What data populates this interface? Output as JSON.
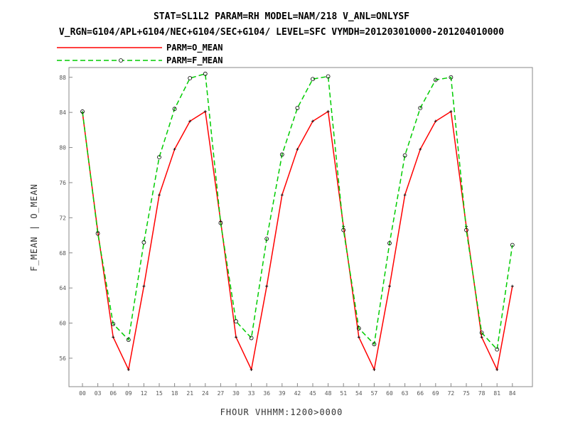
{
  "title_line1": "STAT=SL1L2 PARAM=RH MODEL=NAM/218 V_ANL=ONLYSF",
  "title_line2": "V_RGN=G104/APL+G104/NEC+G104/SEC+G104/ LEVEL=SFC VYMDH=201203010000-201204010000",
  "chart_data": {
    "type": "line",
    "title": "STAT=SL1L2 PARAM=RH MODEL=NAM/218 V_ANL=ONLYSF",
    "xlabel": "FHOUR VHHMM:1200>0000",
    "ylabel": "F_MEAN | O_MEAN",
    "x": [
      "00",
      "03",
      "06",
      "09",
      "12",
      "15",
      "18",
      "21",
      "24",
      "27",
      "30",
      "33",
      "36",
      "39",
      "42",
      "45",
      "48",
      "51",
      "54",
      "57",
      "60",
      "63",
      "66",
      "69",
      "72",
      "75",
      "78",
      "81",
      "84"
    ],
    "ylim": [
      53,
      90
    ],
    "yticks": [
      56,
      60,
      64,
      68,
      72,
      76,
      80,
      84,
      88
    ],
    "ytick_labels": [
      "56",
      "60",
      "64",
      "68",
      "72",
      "76",
      "80",
      "84",
      "88"
    ],
    "grid": false,
    "legend_position": "top-left",
    "series": [
      {
        "name": "PARM=O_MEAN",
        "color": "#ff0000",
        "dash": "solid",
        "marker": "plus",
        "values": [
          84.0,
          70.4,
          58.4,
          54.7,
          64.2,
          74.6,
          79.8,
          83.0,
          84.1,
          71.6,
          58.4,
          54.7,
          64.2,
          74.6,
          79.8,
          83.0,
          84.1,
          71.0,
          58.4,
          54.7,
          64.2,
          74.6,
          79.8,
          83.0,
          84.1,
          71.0,
          58.4,
          54.7,
          64.2
        ]
      },
      {
        "name": "PARM=F_MEAN",
        "color": "#00cc00",
        "dash": "dashed",
        "marker": "circle",
        "values": [
          84.1,
          70.2,
          59.9,
          58.1,
          69.2,
          78.9,
          84.4,
          87.9,
          88.4,
          71.4,
          60.2,
          58.3,
          69.6,
          79.2,
          84.5,
          87.8,
          88.1,
          70.6,
          59.4,
          57.6,
          69.1,
          79.1,
          84.5,
          87.7,
          88.0,
          70.6,
          58.9,
          57.0,
          68.9
        ]
      }
    ]
  }
}
